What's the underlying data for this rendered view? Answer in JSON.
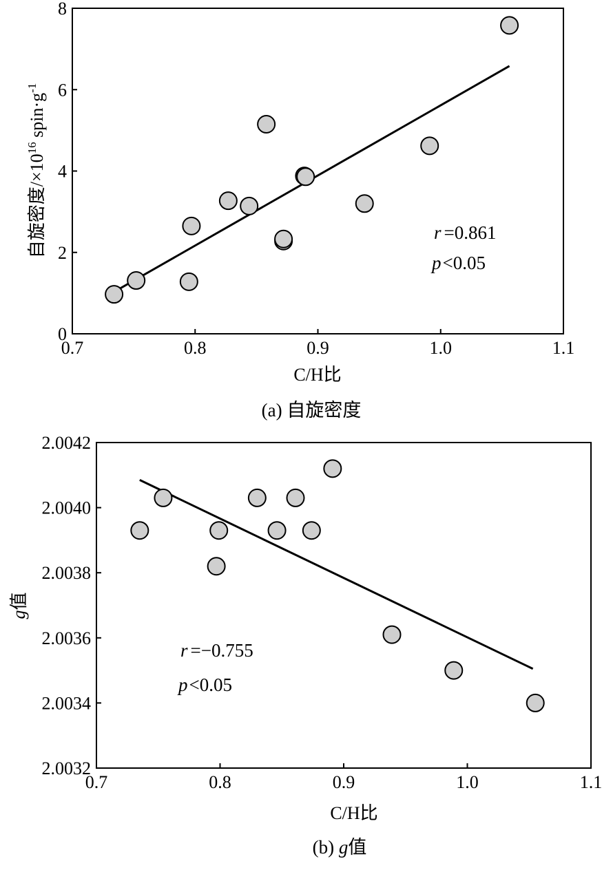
{
  "chart_data": [
    {
      "type": "scatter",
      "xlabel": "C/H比",
      "ylabel_main": "自旋密度/×10",
      "ylabel_exp": "16",
      "ylabel_unit": " spin·g",
      "ylabel_unit_exp": "-1",
      "caption_prefix": "(a) ",
      "caption_text": "自旋密度",
      "xlim": [
        0.7,
        1.1
      ],
      "ylim": [
        0,
        8
      ],
      "xticks": [
        0.7,
        0.8,
        0.9,
        1.0,
        1.1
      ],
      "xtick_labels": [
        "0.7",
        "0.8",
        "0.9",
        "1.0",
        "1.1"
      ],
      "yticks": [
        0,
        2,
        4,
        6,
        8
      ],
      "ytick_labels": [
        "0",
        "2",
        "4",
        "6",
        "8"
      ],
      "grid": false,
      "points": [
        {
          "x": 0.734,
          "y": 0.97
        },
        {
          "x": 0.752,
          "y": 1.31
        },
        {
          "x": 0.795,
          "y": 1.28
        },
        {
          "x": 0.797,
          "y": 2.65
        },
        {
          "x": 0.827,
          "y": 3.27
        },
        {
          "x": 0.844,
          "y": 3.14
        },
        {
          "x": 0.858,
          "y": 5.15
        },
        {
          "x": 0.872,
          "y": 2.28
        },
        {
          "x": 0.872,
          "y": 2.33
        },
        {
          "x": 0.889,
          "y": 3.88
        },
        {
          "x": 0.89,
          "y": 3.86
        },
        {
          "x": 0.938,
          "y": 3.2
        },
        {
          "x": 0.991,
          "y": 4.62
        },
        {
          "x": 1.056,
          "y": 7.58
        }
      ],
      "fit_line": [
        {
          "x": 0.734,
          "y": 1.03
        },
        {
          "x": 1.056,
          "y": 6.58
        }
      ],
      "stat_r_sym": "r",
      "stat_r_val": "=0.861",
      "stat_p_sym": "p",
      "stat_p_val": "<0.05"
    },
    {
      "type": "scatter",
      "xlabel": "C/H比",
      "ylabel_sym": "g",
      "ylabel_text": "值",
      "caption_prefix": "(b) ",
      "caption_sym": "g",
      "caption_text": "值",
      "xlim": [
        0.7,
        1.1
      ],
      "ylim": [
        2.0032,
        2.0042
      ],
      "xticks": [
        0.7,
        0.8,
        0.9,
        1.0,
        1.1
      ],
      "xtick_labels": [
        "0.7",
        "0.8",
        "0.9",
        "1.0",
        "1.1"
      ],
      "yticks": [
        2.0032,
        2.0034,
        2.0036,
        2.0038,
        2.004,
        2.0042
      ],
      "ytick_labels": [
        "2.0032",
        "2.0034",
        "2.0036",
        "2.0038",
        "2.0040",
        "2.0042"
      ],
      "grid": false,
      "points": [
        {
          "x": 0.735,
          "y": 2.00393
        },
        {
          "x": 0.754,
          "y": 2.00403
        },
        {
          "x": 0.797,
          "y": 2.00382
        },
        {
          "x": 0.799,
          "y": 2.00393
        },
        {
          "x": 0.83,
          "y": 2.00403
        },
        {
          "x": 0.846,
          "y": 2.00393
        },
        {
          "x": 0.861,
          "y": 2.00403
        },
        {
          "x": 0.874,
          "y": 2.00393
        },
        {
          "x": 0.891,
          "y": 2.00412
        },
        {
          "x": 0.939,
          "y": 2.00361
        },
        {
          "x": 0.989,
          "y": 2.0035
        },
        {
          "x": 1.055,
          "y": 2.0034
        }
      ],
      "fit_line": [
        {
          "x": 0.735,
          "y": 2.004085
        },
        {
          "x": 1.053,
          "y": 2.003505
        }
      ],
      "stat_r_sym": "r",
      "stat_r_val": "=−0.755",
      "stat_p_sym": "p",
      "stat_p_val": "<0.05"
    }
  ],
  "style": {
    "marker_fill": "#cfcfcf",
    "marker_stroke": "#000000",
    "line_color": "#000000"
  }
}
